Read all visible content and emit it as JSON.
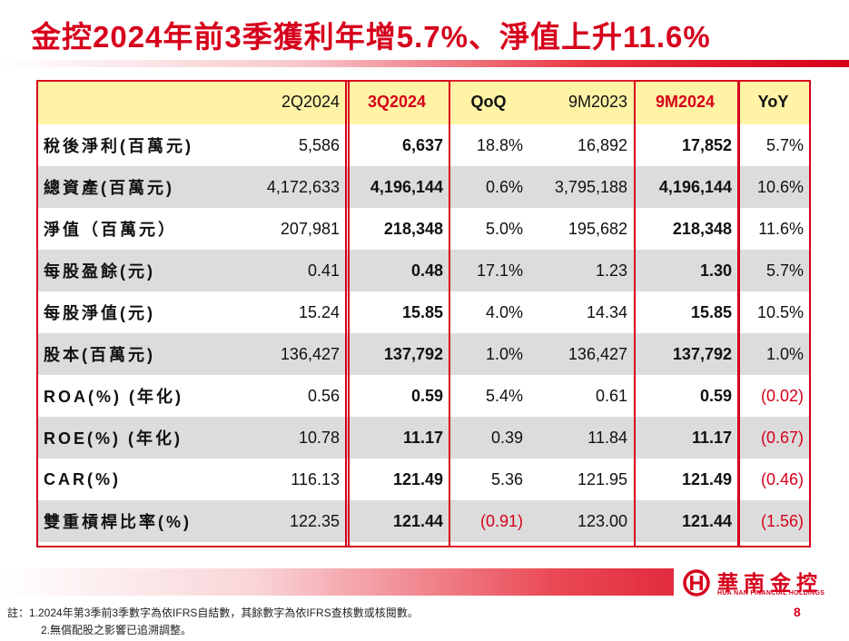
{
  "title": "金控2024年前3季獲利年增5.7%、淨值上升11.6%",
  "colors": {
    "accent": "#d6001c",
    "header_bg": "#fff3a6",
    "row_alt": "#dcdcdc"
  },
  "table": {
    "headers": [
      "",
      "2Q2024",
      "3Q2024",
      "QoQ",
      "9M2023",
      "9M2024",
      "YoY"
    ],
    "rows": [
      {
        "label": "稅後淨利(百萬元)",
        "values": [
          "5,586",
          "6,637",
          "18.8%",
          "16,892",
          "17,852",
          "5.7%"
        ]
      },
      {
        "label": "總資產(百萬元)",
        "values": [
          "4,172,633",
          "4,196,144",
          "0.6%",
          "3,795,188",
          "4,196,144",
          "10.6%"
        ]
      },
      {
        "label": "淨值（百萬元）",
        "values": [
          "207,981",
          "218,348",
          "5.0%",
          "195,682",
          "218,348",
          "11.6%"
        ]
      },
      {
        "label": "每股盈餘(元)",
        "values": [
          "0.41",
          "0.48",
          "17.1%",
          "1.23",
          "1.30",
          "5.7%"
        ]
      },
      {
        "label": "每股淨值(元)",
        "values": [
          "15.24",
          "15.85",
          "4.0%",
          "14.34",
          "15.85",
          "10.5%"
        ]
      },
      {
        "label": "股本(百萬元)",
        "values": [
          "136,427",
          "137,792",
          "1.0%",
          "136,427",
          "137,792",
          "1.0%"
        ]
      },
      {
        "label": "ROA(%) (年化)",
        "values": [
          "0.56",
          "0.59",
          "5.4%",
          "0.61",
          "0.59",
          "(0.02)"
        ]
      },
      {
        "label": "ROE(%) (年化)",
        "values": [
          "10.78",
          "11.17",
          "0.39",
          "11.84",
          "11.17",
          "(0.67)"
        ]
      },
      {
        "label": "CAR(%)",
        "values": [
          "116.13",
          "121.49",
          "5.36",
          "121.95",
          "121.49",
          "(0.46)"
        ]
      },
      {
        "label": "雙重槓桿比率(%)",
        "values": [
          "122.35",
          "121.44",
          "(0.91)",
          "123.00",
          "121.44",
          "(1.56)"
        ]
      }
    ]
  },
  "logo": {
    "name": "華南金控",
    "sub": "HUA NAN FINANCIAL HOLDINGS",
    "icon": "hua-nan-logo-icon"
  },
  "page_number": "8",
  "notes": [
    "註：1.2024年第3季前3季數字為依IFRS自結數，其餘數字為依IFRS查核數或核閱數。",
    "2.無償配股之影響已追溯調整。"
  ]
}
